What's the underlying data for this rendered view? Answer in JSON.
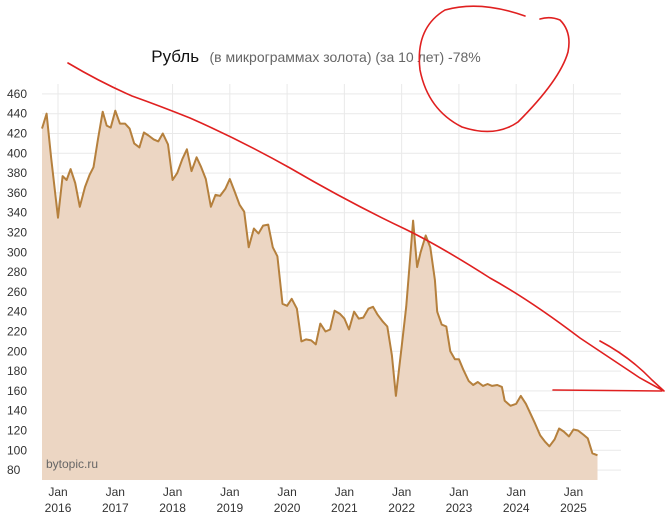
{
  "chart_data": {
    "type": "area",
    "title": "Рубль",
    "subtitle": "(в микрограммах золота) (за 10 лет) -78%",
    "watermark": "bytopic.ru",
    "xlabel": "",
    "ylabel": "",
    "ylim": [
      70,
      470
    ],
    "y_ticks": [
      80,
      100,
      120,
      140,
      160,
      180,
      200,
      220,
      240,
      260,
      280,
      300,
      320,
      340,
      360,
      380,
      400,
      420,
      440,
      460
    ],
    "x_ticks": [
      {
        "t": 2016,
        "month": "Jan",
        "year": "2016"
      },
      {
        "t": 2017,
        "month": "Jan",
        "year": "2017"
      },
      {
        "t": 2018,
        "month": "Jan",
        "year": "2018"
      },
      {
        "t": 2019,
        "month": "Jan",
        "year": "2019"
      },
      {
        "t": 2020,
        "month": "Jan",
        "year": "2020"
      },
      {
        "t": 2021,
        "month": "Jan",
        "year": "2021"
      },
      {
        "t": 2022,
        "month": "Jan",
        "year": "2022"
      },
      {
        "t": 2023,
        "month": "Jan",
        "year": "2023"
      },
      {
        "t": 2024,
        "month": "Jan",
        "year": "2024"
      },
      {
        "t": 2025,
        "month": "Jan",
        "year": "2025"
      }
    ],
    "xlim": [
      2015.72,
      2025.83
    ],
    "grid": true,
    "colors": {
      "line": "#b5803d",
      "fill": "#ecd6c3",
      "grid": "#e9e9e9",
      "annotation": "#e02020"
    },
    "series": [
      {
        "points": [
          [
            2015.72,
            425
          ],
          [
            2015.8,
            440
          ],
          [
            2015.88,
            395
          ],
          [
            2016.0,
            335
          ],
          [
            2016.08,
            377
          ],
          [
            2016.15,
            373
          ],
          [
            2016.22,
            384
          ],
          [
            2016.3,
            370
          ],
          [
            2016.38,
            346
          ],
          [
            2016.47,
            366
          ],
          [
            2016.55,
            378
          ],
          [
            2016.62,
            386
          ],
          [
            2016.7,
            415
          ],
          [
            2016.78,
            442
          ],
          [
            2016.85,
            428
          ],
          [
            2016.92,
            426
          ],
          [
            2017.0,
            443
          ],
          [
            2017.08,
            430
          ],
          [
            2017.17,
            430
          ],
          [
            2017.25,
            425
          ],
          [
            2017.33,
            410
          ],
          [
            2017.42,
            406
          ],
          [
            2017.5,
            421
          ],
          [
            2017.58,
            418
          ],
          [
            2017.67,
            414
          ],
          [
            2017.75,
            412
          ],
          [
            2017.83,
            420
          ],
          [
            2017.92,
            409
          ],
          [
            2018.0,
            373
          ],
          [
            2018.08,
            380
          ],
          [
            2018.17,
            394
          ],
          [
            2018.25,
            404
          ],
          [
            2018.33,
            382
          ],
          [
            2018.42,
            396
          ],
          [
            2018.5,
            386
          ],
          [
            2018.58,
            374
          ],
          [
            2018.67,
            346
          ],
          [
            2018.75,
            358
          ],
          [
            2018.83,
            357
          ],
          [
            2018.92,
            364
          ],
          [
            2019.0,
            374
          ],
          [
            2019.08,
            362
          ],
          [
            2019.17,
            348
          ],
          [
            2019.25,
            341
          ],
          [
            2019.33,
            305
          ],
          [
            2019.42,
            324
          ],
          [
            2019.5,
            319
          ],
          [
            2019.58,
            327
          ],
          [
            2019.67,
            328
          ],
          [
            2019.75,
            305
          ],
          [
            2019.83,
            296
          ],
          [
            2019.92,
            248
          ],
          [
            2020.0,
            246
          ],
          [
            2020.08,
            253
          ],
          [
            2020.17,
            243
          ],
          [
            2020.25,
            210
          ],
          [
            2020.33,
            212
          ],
          [
            2020.42,
            211
          ],
          [
            2020.5,
            207
          ],
          [
            2020.58,
            228
          ],
          [
            2020.67,
            220
          ],
          [
            2020.75,
            222
          ],
          [
            2020.83,
            241
          ],
          [
            2020.92,
            238
          ],
          [
            2021.0,
            233
          ],
          [
            2021.08,
            222
          ],
          [
            2021.17,
            240
          ],
          [
            2021.25,
            233
          ],
          [
            2021.33,
            234
          ],
          [
            2021.42,
            243
          ],
          [
            2021.5,
            245
          ],
          [
            2021.58,
            237
          ],
          [
            2021.67,
            230
          ],
          [
            2021.75,
            225
          ],
          [
            2021.83,
            196
          ],
          [
            2021.9,
            155
          ],
          [
            2022.0,
            205
          ],
          [
            2022.08,
            245
          ],
          [
            2022.15,
            295
          ],
          [
            2022.2,
            332
          ],
          [
            2022.27,
            285
          ],
          [
            2022.33,
            300
          ],
          [
            2022.42,
            317
          ],
          [
            2022.5,
            305
          ],
          [
            2022.58,
            272
          ],
          [
            2022.62,
            240
          ],
          [
            2022.7,
            227
          ],
          [
            2022.78,
            225
          ],
          [
            2022.85,
            200
          ],
          [
            2022.93,
            192
          ],
          [
            2023.0,
            192
          ],
          [
            2023.08,
            181
          ],
          [
            2023.17,
            170
          ],
          [
            2023.25,
            166
          ],
          [
            2023.33,
            169
          ],
          [
            2023.42,
            165
          ],
          [
            2023.5,
            167
          ],
          [
            2023.58,
            165
          ],
          [
            2023.67,
            166
          ],
          [
            2023.75,
            164
          ],
          [
            2023.8,
            150
          ],
          [
            2023.9,
            145
          ],
          [
            2024.0,
            147
          ],
          [
            2024.08,
            155
          ],
          [
            2024.17,
            147
          ],
          [
            2024.25,
            137
          ],
          [
            2024.33,
            127
          ],
          [
            2024.42,
            115
          ],
          [
            2024.5,
            109
          ],
          [
            2024.58,
            104
          ],
          [
            2024.67,
            111
          ],
          [
            2024.75,
            122
          ],
          [
            2024.83,
            119
          ],
          [
            2024.92,
            114
          ],
          [
            2025.0,
            121
          ],
          [
            2025.08,
            120
          ],
          [
            2025.17,
            116
          ],
          [
            2025.25,
            112
          ],
          [
            2025.33,
            97
          ],
          [
            2025.42,
            95
          ]
        ]
      }
    ]
  }
}
